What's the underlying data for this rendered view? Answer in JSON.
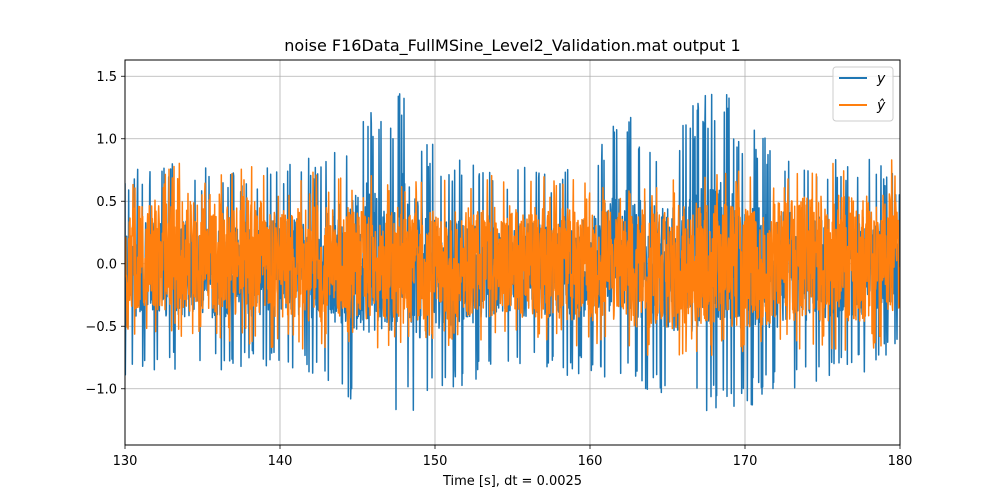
{
  "chart_data": {
    "type": "line",
    "title": "noise F16Data_FullMSine_Level2_Validation.mat output 1",
    "xlabel": "Time [s], dt = 0.0025",
    "ylabel": "",
    "xlim": [
      130,
      180
    ],
    "ylim": [
      -1.45,
      1.63
    ],
    "xticks": [
      130,
      140,
      150,
      160,
      170,
      180
    ],
    "xtick_labels": [
      "130",
      "140",
      "150",
      "160",
      "170",
      "180"
    ],
    "yticks": [
      -1.0,
      -0.5,
      0.0,
      0.5,
      1.0,
      1.5
    ],
    "ytick_labels": [
      "−1.0",
      "−0.5",
      "0.0",
      "0.5",
      "1.0",
      "1.5"
    ],
    "grid": true,
    "legend": {
      "location": "upper right",
      "entries": [
        "y",
        "ŷ"
      ]
    },
    "colors": {
      "y": "#1f77b4",
      "yhat": "#ff7f0e"
    },
    "series": [
      {
        "name": "y",
        "color": "#1f77b4",
        "x_range": [
          130,
          180
        ],
        "dt": 0.0025,
        "envelope": [
          [
            130,
            -1.02,
            0.72
          ],
          [
            132,
            -0.9,
            0.85
          ],
          [
            134,
            -0.92,
            0.82
          ],
          [
            136,
            -0.9,
            0.75
          ],
          [
            138,
            -0.9,
            0.78
          ],
          [
            140,
            -0.85,
            0.8
          ],
          [
            142,
            -0.95,
            0.85
          ],
          [
            144,
            -1.1,
            1.07
          ],
          [
            145.5,
            -1.3,
            1.38
          ],
          [
            147,
            -1.25,
            1.2
          ],
          [
            148.1,
            -1.2,
            1.49
          ],
          [
            149,
            -1.28,
            1.15
          ],
          [
            150,
            -1.1,
            0.95
          ],
          [
            152,
            -1.0,
            0.82
          ],
          [
            154,
            -0.88,
            0.78
          ],
          [
            156,
            -0.9,
            0.8
          ],
          [
            158,
            -0.92,
            0.75
          ],
          [
            160,
            -0.95,
            0.85
          ],
          [
            162,
            -1.0,
            1.23
          ],
          [
            164,
            -1.1,
            1.05
          ],
          [
            166,
            -1.3,
            1.2
          ],
          [
            168.4,
            -1.25,
            1.49
          ],
          [
            170,
            -1.2,
            1.1
          ],
          [
            172,
            -1.1,
            1.0
          ],
          [
            174,
            -1.0,
            0.9
          ],
          [
            176,
            -0.95,
            0.85
          ],
          [
            178,
            -0.9,
            0.85
          ],
          [
            180,
            -0.7,
            0.68
          ]
        ]
      },
      {
        "name": "ŷ",
        "color": "#ff7f0e",
        "x_range": [
          130,
          180
        ],
        "dt": 0.0025,
        "envelope": [
          [
            130,
            -0.62,
            0.72
          ],
          [
            134,
            -0.65,
            0.84
          ],
          [
            138,
            -0.7,
            0.82
          ],
          [
            140,
            -0.72,
            0.68
          ],
          [
            142,
            -0.75,
            0.75
          ],
          [
            145,
            -0.72,
            0.7
          ],
          [
            148,
            -0.75,
            0.72
          ],
          [
            150,
            -0.7,
            0.7
          ],
          [
            155,
            -0.68,
            0.72
          ],
          [
            160,
            -0.72,
            0.68
          ],
          [
            164,
            -0.8,
            0.7
          ],
          [
            168,
            -0.8,
            0.82
          ],
          [
            170,
            -0.78,
            0.72
          ],
          [
            174,
            -0.72,
            0.82
          ],
          [
            178,
            -0.78,
            0.85
          ],
          [
            179.5,
            -0.65,
            0.84
          ],
          [
            180,
            -0.62,
            0.67
          ]
        ]
      }
    ]
  }
}
